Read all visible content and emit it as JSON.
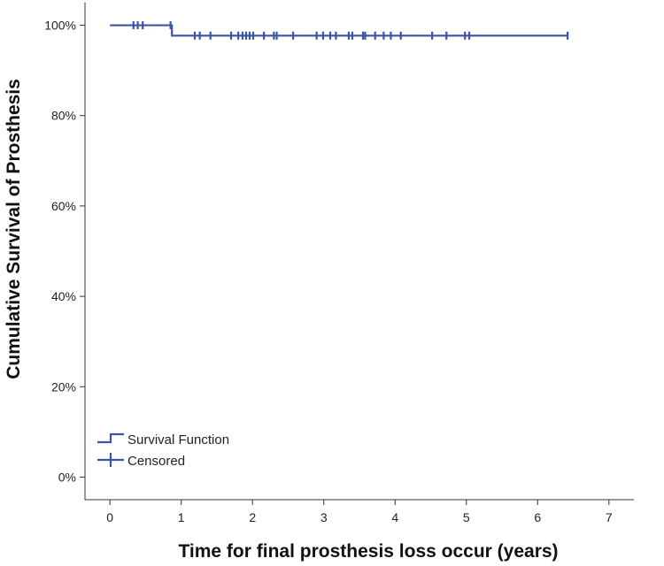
{
  "chart_data": {
    "type": "line",
    "title": "",
    "xlabel": "Time for final prosthesis loss occur (years)",
    "ylabel": "Cumulative Survival of Prosthesis",
    "xlim": [
      -0.35,
      7.35
    ],
    "ylim": [
      -0.05,
      1.05
    ],
    "x_ticks": [
      0,
      1,
      2,
      3,
      4,
      5,
      6,
      7
    ],
    "x_tick_labels": [
      "0",
      "1",
      "2",
      "3",
      "4",
      "5",
      "6",
      "7"
    ],
    "y_ticks": [
      0,
      0.2,
      0.4,
      0.6,
      0.8,
      1.0
    ],
    "y_tick_labels": [
      "0%",
      "20%",
      "40%",
      "60%",
      "80%",
      "100%"
    ],
    "grid": false,
    "legend_position": "bottom-left",
    "series": [
      {
        "name": "Survival Function",
        "kind": "step",
        "x": [
          0,
          0.87,
          6.42
        ],
        "y": [
          1.0,
          0.977,
          0.977
        ]
      },
      {
        "name": "Censored",
        "kind": "censor-marks",
        "x": [
          0.33,
          0.39,
          0.46,
          0.85,
          1.19,
          1.26,
          1.41,
          1.7,
          1.8,
          1.86,
          1.91,
          1.96,
          2.01,
          2.16,
          2.3,
          2.34,
          2.57,
          2.9,
          2.99,
          3.09,
          3.17,
          3.35,
          3.4,
          3.55,
          3.58,
          3.72,
          3.84,
          3.94,
          4.08,
          4.52,
          4.72,
          4.98,
          5.04,
          6.42
        ],
        "y": [
          1.0,
          1.0,
          1.0,
          1.0,
          0.977,
          0.977,
          0.977,
          0.977,
          0.977,
          0.977,
          0.977,
          0.977,
          0.977,
          0.977,
          0.977,
          0.977,
          0.977,
          0.977,
          0.977,
          0.977,
          0.977,
          0.977,
          0.977,
          0.977,
          0.977,
          0.977,
          0.977,
          0.977,
          0.977,
          0.977,
          0.977,
          0.977,
          0.977,
          0.977
        ]
      }
    ],
    "line_color": "#3a55a8",
    "axis_color": "#333333"
  }
}
